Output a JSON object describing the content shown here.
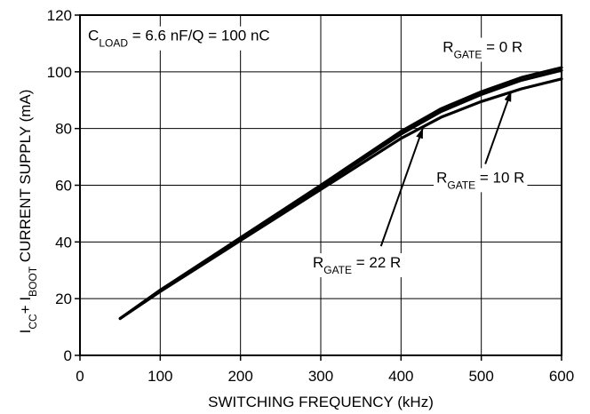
{
  "chart_data": {
    "type": "line",
    "xlabel": "SWITCHING FREQUENCY (kHz)",
    "ylabel": {
      "parts": [
        {
          "text": "I",
          "sub": false
        },
        {
          "text": "CC",
          "sub": true
        },
        {
          "text": "+ I",
          "sub": false
        },
        {
          "text": "BOOT",
          "sub": true
        },
        {
          "text": " CURRENT SUPPLY (mA)",
          "sub": false
        }
      ]
    },
    "xlim": [
      0,
      600
    ],
    "ylim": [
      0,
      120
    ],
    "x_ticks": [
      0,
      100,
      200,
      300,
      400,
      500,
      600
    ],
    "y_ticks": [
      0,
      20,
      40,
      60,
      80,
      100,
      120
    ],
    "grid": true,
    "series": [
      {
        "name": "RGATE = 0 R",
        "x": [
          50,
          100,
          200,
          300,
          400,
          450,
          500,
          550,
          600
        ],
        "y": [
          13,
          23,
          41.5,
          60,
          79,
          87,
          93,
          98,
          101.5
        ]
      },
      {
        "name": "RGATE = 10 R",
        "x": [
          50,
          100,
          200,
          300,
          400,
          450,
          500,
          550,
          600
        ],
        "y": [
          13,
          23,
          41,
          59.5,
          78,
          86,
          92,
          97,
          100.5
        ]
      },
      {
        "name": "RGATE = 22 R",
        "x": [
          50,
          100,
          200,
          300,
          400,
          450,
          500,
          550,
          600
        ],
        "y": [
          13,
          22.5,
          40.5,
          58.5,
          76.5,
          84,
          89.5,
          94,
          97.5
        ]
      }
    ],
    "annotations": [
      {
        "parts": [
          {
            "text": "C",
            "sub": false
          },
          {
            "text": "LOAD",
            "sub": true
          },
          {
            "text": " = 6.6 nF/Q = 100 nC",
            "sub": false
          }
        ],
        "at": [
          10,
          111
        ]
      },
      {
        "parts": [
          {
            "text": "R",
            "sub": false
          },
          {
            "text": "GATE",
            "sub": true
          },
          {
            "text": " = 0 R",
            "sub": false
          }
        ],
        "at": [
          452,
          107
        ]
      },
      {
        "parts": [
          {
            "text": "R",
            "sub": false
          },
          {
            "text": "GATE",
            "sub": true
          },
          {
            "text": " = 10 R",
            "sub": false
          }
        ],
        "at": [
          444,
          61
        ],
        "arrow": {
          "from": [
            505,
            67.5
          ],
          "to": [
            537,
            93
          ]
        }
      },
      {
        "parts": [
          {
            "text": "R",
            "sub": false
          },
          {
            "text": "GATE",
            "sub": true
          },
          {
            "text": " = 22 R",
            "sub": false
          }
        ],
        "at": [
          290,
          31
        ],
        "arrow": {
          "from": [
            375,
            38.5
          ],
          "to": [
            427,
            80
          ]
        }
      }
    ]
  }
}
